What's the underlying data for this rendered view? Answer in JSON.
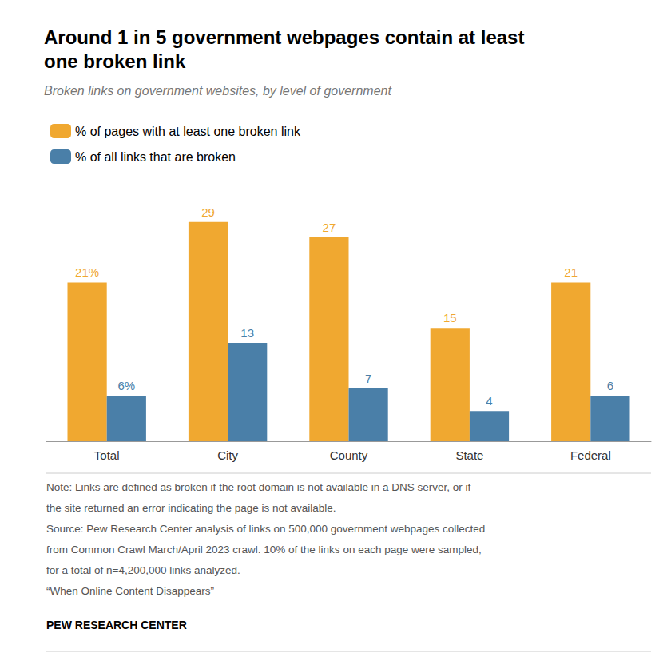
{
  "chart_data": {
    "type": "bar",
    "title": "Around 1 in 5 government webpages contain at least\none broken link",
    "subtitle": "Broken links on government websites, by level of government",
    "categories": [
      "Total",
      "City",
      "County",
      "State",
      "Federal"
    ],
    "series": [
      {
        "name": "% of pages with at least one broken link",
        "color": "#F0A830",
        "values": [
          21,
          29,
          27,
          15,
          21
        ],
        "value_labels": [
          "21%",
          "29",
          "27",
          "15",
          "21"
        ]
      },
      {
        "name": "% of all links that are broken",
        "color": "#4A7FA8",
        "values": [
          6,
          13,
          7,
          4,
          6
        ],
        "value_labels": [
          "6%",
          "13",
          "7",
          "4",
          "6"
        ]
      }
    ],
    "ylim": [
      0,
      33
    ],
    "grid": false,
    "legend": "upper left",
    "data_labels": true,
    "tick_labels": "x",
    "notes": [
      "Note: Links are defined as broken if the root domain is not available in a DNS server, or if",
      "the site returned an error indicating the page is not available.",
      "Source: Pew Research Center analysis of links on 500,000 government webpages collected",
      "from Common Crawl March/April 2023 crawl. 10% of the links on each page were sampled,",
      "for a total of n=4,200,000 links analyzed.",
      "“When Online Content Disappears”"
    ],
    "source": "PEW RESEARCH CENTER"
  }
}
